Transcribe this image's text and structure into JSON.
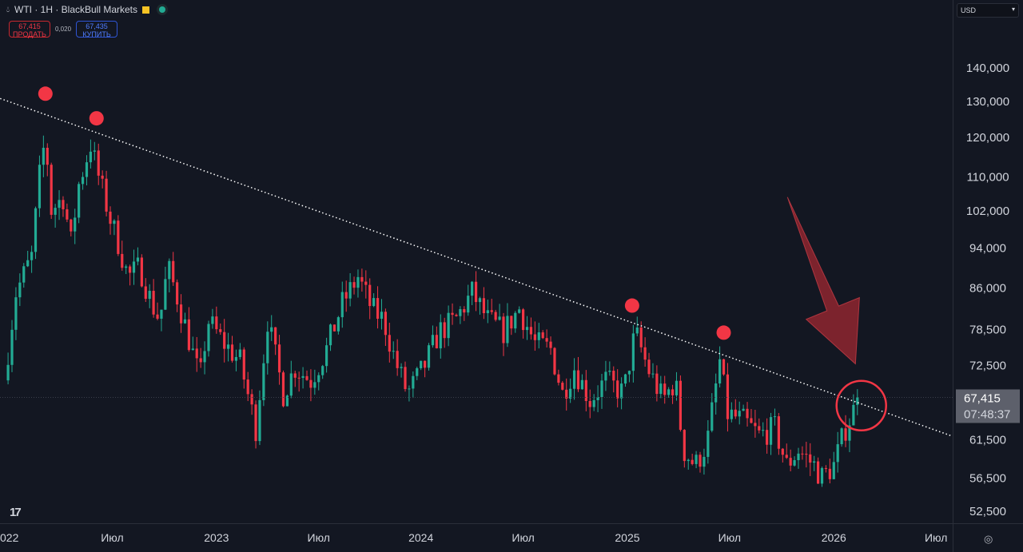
{
  "header": {
    "title": "WTI · 1H · BlackBull Markets",
    "sell_price": "67,415",
    "sell_label": "ПРОДАТЬ",
    "spread": "0,020",
    "buy_price": "67,435",
    "buy_label": "КУПИТЬ",
    "currency": "USD"
  },
  "colors": {
    "background": "#131722",
    "up": "#22ab94",
    "down": "#f23645",
    "annotation": "#f23645"
  },
  "chart_data": {
    "type": "candlestick",
    "scale": "log",
    "x_unit": "weeks since Jan 2022",
    "ylim": [
      50500,
      152000
    ],
    "y_ticks": [
      "140,000",
      "130,000",
      "120,000",
      "110,000",
      "102,000",
      "94,000",
      "86,000",
      "78,500",
      "72,500",
      "61,500",
      "56,500",
      "52,500"
    ],
    "x_ticks": [
      {
        "label": "022",
        "week": 0
      },
      {
        "label": "Июл",
        "week": 25.5
      },
      {
        "label": "2023",
        "week": 52
      },
      {
        "label": "Июл",
        "week": 78
      },
      {
        "label": "2024",
        "week": 104
      },
      {
        "label": "Июл",
        "week": 130
      },
      {
        "label": "2025",
        "week": 156.5
      },
      {
        "label": "Июл",
        "week": 182.5
      },
      {
        "label": "2026",
        "week": 209
      },
      {
        "label": "Июл",
        "week": 235
      }
    ],
    "close_path": [
      [
        -2,
        70000
      ],
      [
        1,
        85000
      ],
      [
        5,
        92000
      ],
      [
        7,
        110000
      ],
      [
        8.5,
        120000
      ],
      [
        10,
        102000
      ],
      [
        13,
        105000
      ],
      [
        15,
        95000
      ],
      [
        17,
        108000
      ],
      [
        20,
        118000
      ],
      [
        22,
        110000
      ],
      [
        25,
        100000
      ],
      [
        27,
        95000
      ],
      [
        29.5,
        88000
      ],
      [
        32.5,
        90000
      ],
      [
        35.5,
        83000
      ],
      [
        37.6,
        80000
      ],
      [
        39.6,
        90000
      ],
      [
        41.7,
        85000
      ],
      [
        45.7,
        75000
      ],
      [
        47.8,
        70000
      ],
      [
        49.8,
        80000
      ],
      [
        53.9,
        76000
      ],
      [
        58,
        73000
      ],
      [
        62,
        63000
      ],
      [
        65,
        80000
      ],
      [
        69,
        68000
      ],
      [
        72,
        72000
      ],
      [
        76,
        70000
      ],
      [
        80,
        75000
      ],
      [
        84,
        83000
      ],
      [
        88,
        88000
      ],
      [
        91.5,
        82000
      ],
      [
        94.5,
        80000
      ],
      [
        97.5,
        73000
      ],
      [
        100.6,
        68000
      ],
      [
        104.7,
        72000
      ],
      [
        108.7,
        78000
      ],
      [
        112.8,
        80000
      ],
      [
        117,
        85000
      ],
      [
        121,
        80000
      ],
      [
        125,
        78000
      ],
      [
        129,
        82000
      ],
      [
        133,
        76000
      ],
      [
        137,
        75000
      ],
      [
        140,
        68000
      ],
      [
        143,
        72000
      ],
      [
        147,
        67000
      ],
      [
        151,
        70000
      ],
      [
        155.5,
        68000
      ],
      [
        158.5,
        78000
      ],
      [
        161.6,
        72000
      ],
      [
        165.6,
        67000
      ],
      [
        168.7,
        70000
      ],
      [
        170.7,
        60000
      ],
      [
        173.8,
        58000
      ],
      [
        176.8,
        61000
      ],
      [
        180,
        73000
      ],
      [
        182,
        65000
      ],
      [
        186,
        64000
      ],
      [
        190,
        62000
      ],
      [
        194,
        63000
      ],
      [
        197,
        58000
      ],
      [
        200,
        60000
      ],
      [
        204,
        58000
      ],
      [
        206,
        56500
      ],
      [
        209,
        58000
      ],
      [
        212,
        63000
      ],
      [
        215.5,
        67415
      ]
    ],
    "last_price": {
      "value": "67,415",
      "countdown": "07:48:37"
    },
    "trendline": {
      "from": [
        -3,
        130600
      ],
      "to": [
        239,
        61900
      ],
      "style": "dotted"
    },
    "markers": [
      {
        "week": 8.5,
        "price": 132000
      },
      {
        "week": 21.5,
        "price": 125000
      },
      {
        "week": 157.7,
        "price": 82600
      },
      {
        "week": 181,
        "price": 77800
      }
    ],
    "highlight_circle": {
      "week": 216,
      "price": 66200
    },
    "arrow": {
      "from": [
        197.2,
        105000
      ],
      "to": [
        214.5,
        72600
      ]
    }
  }
}
